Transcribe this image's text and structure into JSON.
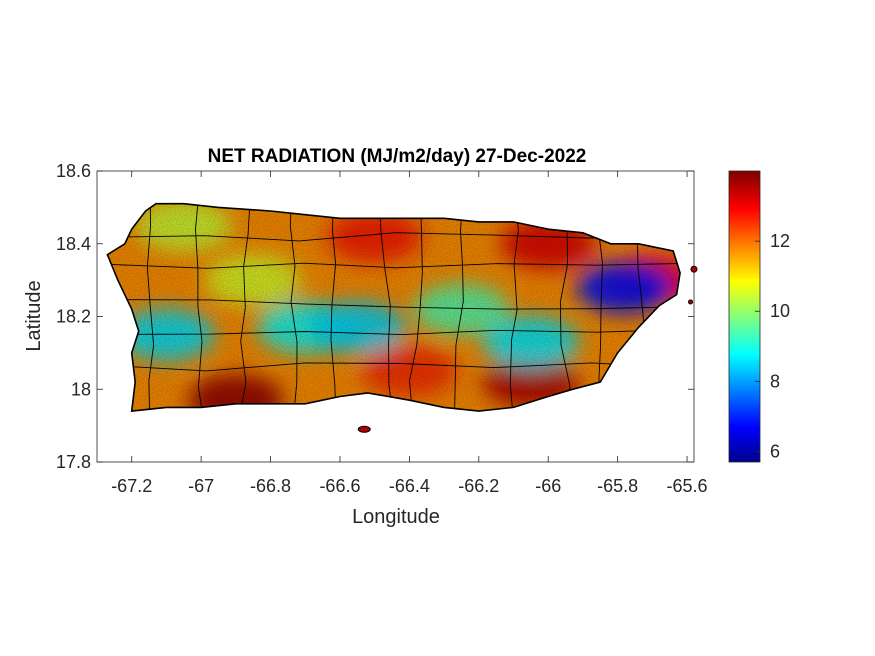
{
  "title": "NET RADIATION (MJ/m2/day) 27-Dec-2022",
  "axes": {
    "xlabel": "Longitude",
    "ylabel": "Latitude",
    "xlim": [
      -67.3,
      -65.58
    ],
    "ylim": [
      17.8,
      18.6
    ],
    "xticks": [
      -67.2,
      -67,
      -66.8,
      -66.6,
      -66.4,
      -66.2,
      -66,
      -65.8,
      -65.6
    ],
    "xtick_labels": [
      "-67.2",
      "-67",
      "-66.8",
      "-66.6",
      "-66.4",
      "-66.2",
      "-66",
      "-65.8",
      "-65.6"
    ],
    "yticks": [
      17.8,
      18,
      18.2,
      18.4,
      18.6
    ],
    "ytick_labels": [
      "17.8",
      "18",
      "18.2",
      "18.4",
      "18.6"
    ]
  },
  "colorbar": {
    "colormap": "jet",
    "lim": [
      5.7,
      14
    ],
    "ticks": [
      6,
      8,
      10,
      12
    ],
    "tick_labels": [
      "6",
      "8",
      "10",
      "12"
    ],
    "colors": [
      "#00008f",
      "#0000ff",
      "#00ffff",
      "#ffff00",
      "#ff0000",
      "#800000"
    ]
  },
  "map_data": {
    "type": "heatmap",
    "region": "Puerto Rico",
    "variable": "Net radiation",
    "outline_color": "#000000",
    "outline_lonlat": [
      [
        -67.27,
        18.37
      ],
      [
        -67.22,
        18.4
      ],
      [
        -67.2,
        18.44
      ],
      [
        -67.16,
        18.49
      ],
      [
        -67.13,
        18.51
      ],
      [
        -67.05,
        18.51
      ],
      [
        -66.95,
        18.5
      ],
      [
        -66.8,
        18.49
      ],
      [
        -66.7,
        18.48
      ],
      [
        -66.6,
        18.47
      ],
      [
        -66.45,
        18.47
      ],
      [
        -66.3,
        18.47
      ],
      [
        -66.2,
        18.46
      ],
      [
        -66.1,
        18.46
      ],
      [
        -66.0,
        18.44
      ],
      [
        -65.9,
        18.43
      ],
      [
        -65.82,
        18.4
      ],
      [
        -65.74,
        18.4
      ],
      [
        -65.64,
        18.38
      ],
      [
        -65.62,
        18.32
      ],
      [
        -65.63,
        18.26
      ],
      [
        -65.68,
        18.23
      ],
      [
        -65.74,
        18.17
      ],
      [
        -65.8,
        18.1
      ],
      [
        -65.85,
        18.02
      ],
      [
        -65.93,
        18.0
      ],
      [
        -66.0,
        17.98
      ],
      [
        -66.1,
        17.95
      ],
      [
        -66.2,
        17.94
      ],
      [
        -66.3,
        17.95
      ],
      [
        -66.4,
        17.97
      ],
      [
        -66.52,
        17.99
      ],
      [
        -66.6,
        17.98
      ],
      [
        -66.7,
        17.96
      ],
      [
        -66.8,
        17.96
      ],
      [
        -66.9,
        17.96
      ],
      [
        -67.0,
        17.95
      ],
      [
        -67.1,
        17.95
      ],
      [
        -67.2,
        17.94
      ],
      [
        -67.19,
        18.02
      ],
      [
        -67.2,
        18.1
      ],
      [
        -67.18,
        18.16
      ],
      [
        -67.2,
        18.22
      ],
      [
        -67.24,
        18.3
      ],
      [
        -67.27,
        18.37
      ]
    ],
    "hotspots": [
      {
        "lon": -66.05,
        "lat": 18.02,
        "value": 13.6
      },
      {
        "lon": -66.9,
        "lat": 17.97,
        "value": 13.8
      },
      {
        "lon": -66.5,
        "lat": 18.42,
        "value": 12.8
      },
      {
        "lon": -66.0,
        "lat": 18.4,
        "value": 13.2
      },
      {
        "lon": -65.7,
        "lat": 18.3,
        "value": 13.0
      },
      {
        "lon": -66.4,
        "lat": 18.05,
        "value": 12.6
      },
      {
        "lon": -67.05,
        "lat": 18.45,
        "value": 10.5
      },
      {
        "lon": -67.1,
        "lat": 18.15,
        "value": 8.6
      },
      {
        "lon": -66.7,
        "lat": 18.17,
        "value": 8.9
      },
      {
        "lon": -66.55,
        "lat": 18.17,
        "value": 8.5
      },
      {
        "lon": -66.05,
        "lat": 18.13,
        "value": 8.7
      },
      {
        "lon": -65.78,
        "lat": 18.28,
        "value": 6.8
      },
      {
        "lon": -66.25,
        "lat": 18.22,
        "value": 9.5
      },
      {
        "lon": -66.85,
        "lat": 18.3,
        "value": 10.6
      }
    ]
  }
}
